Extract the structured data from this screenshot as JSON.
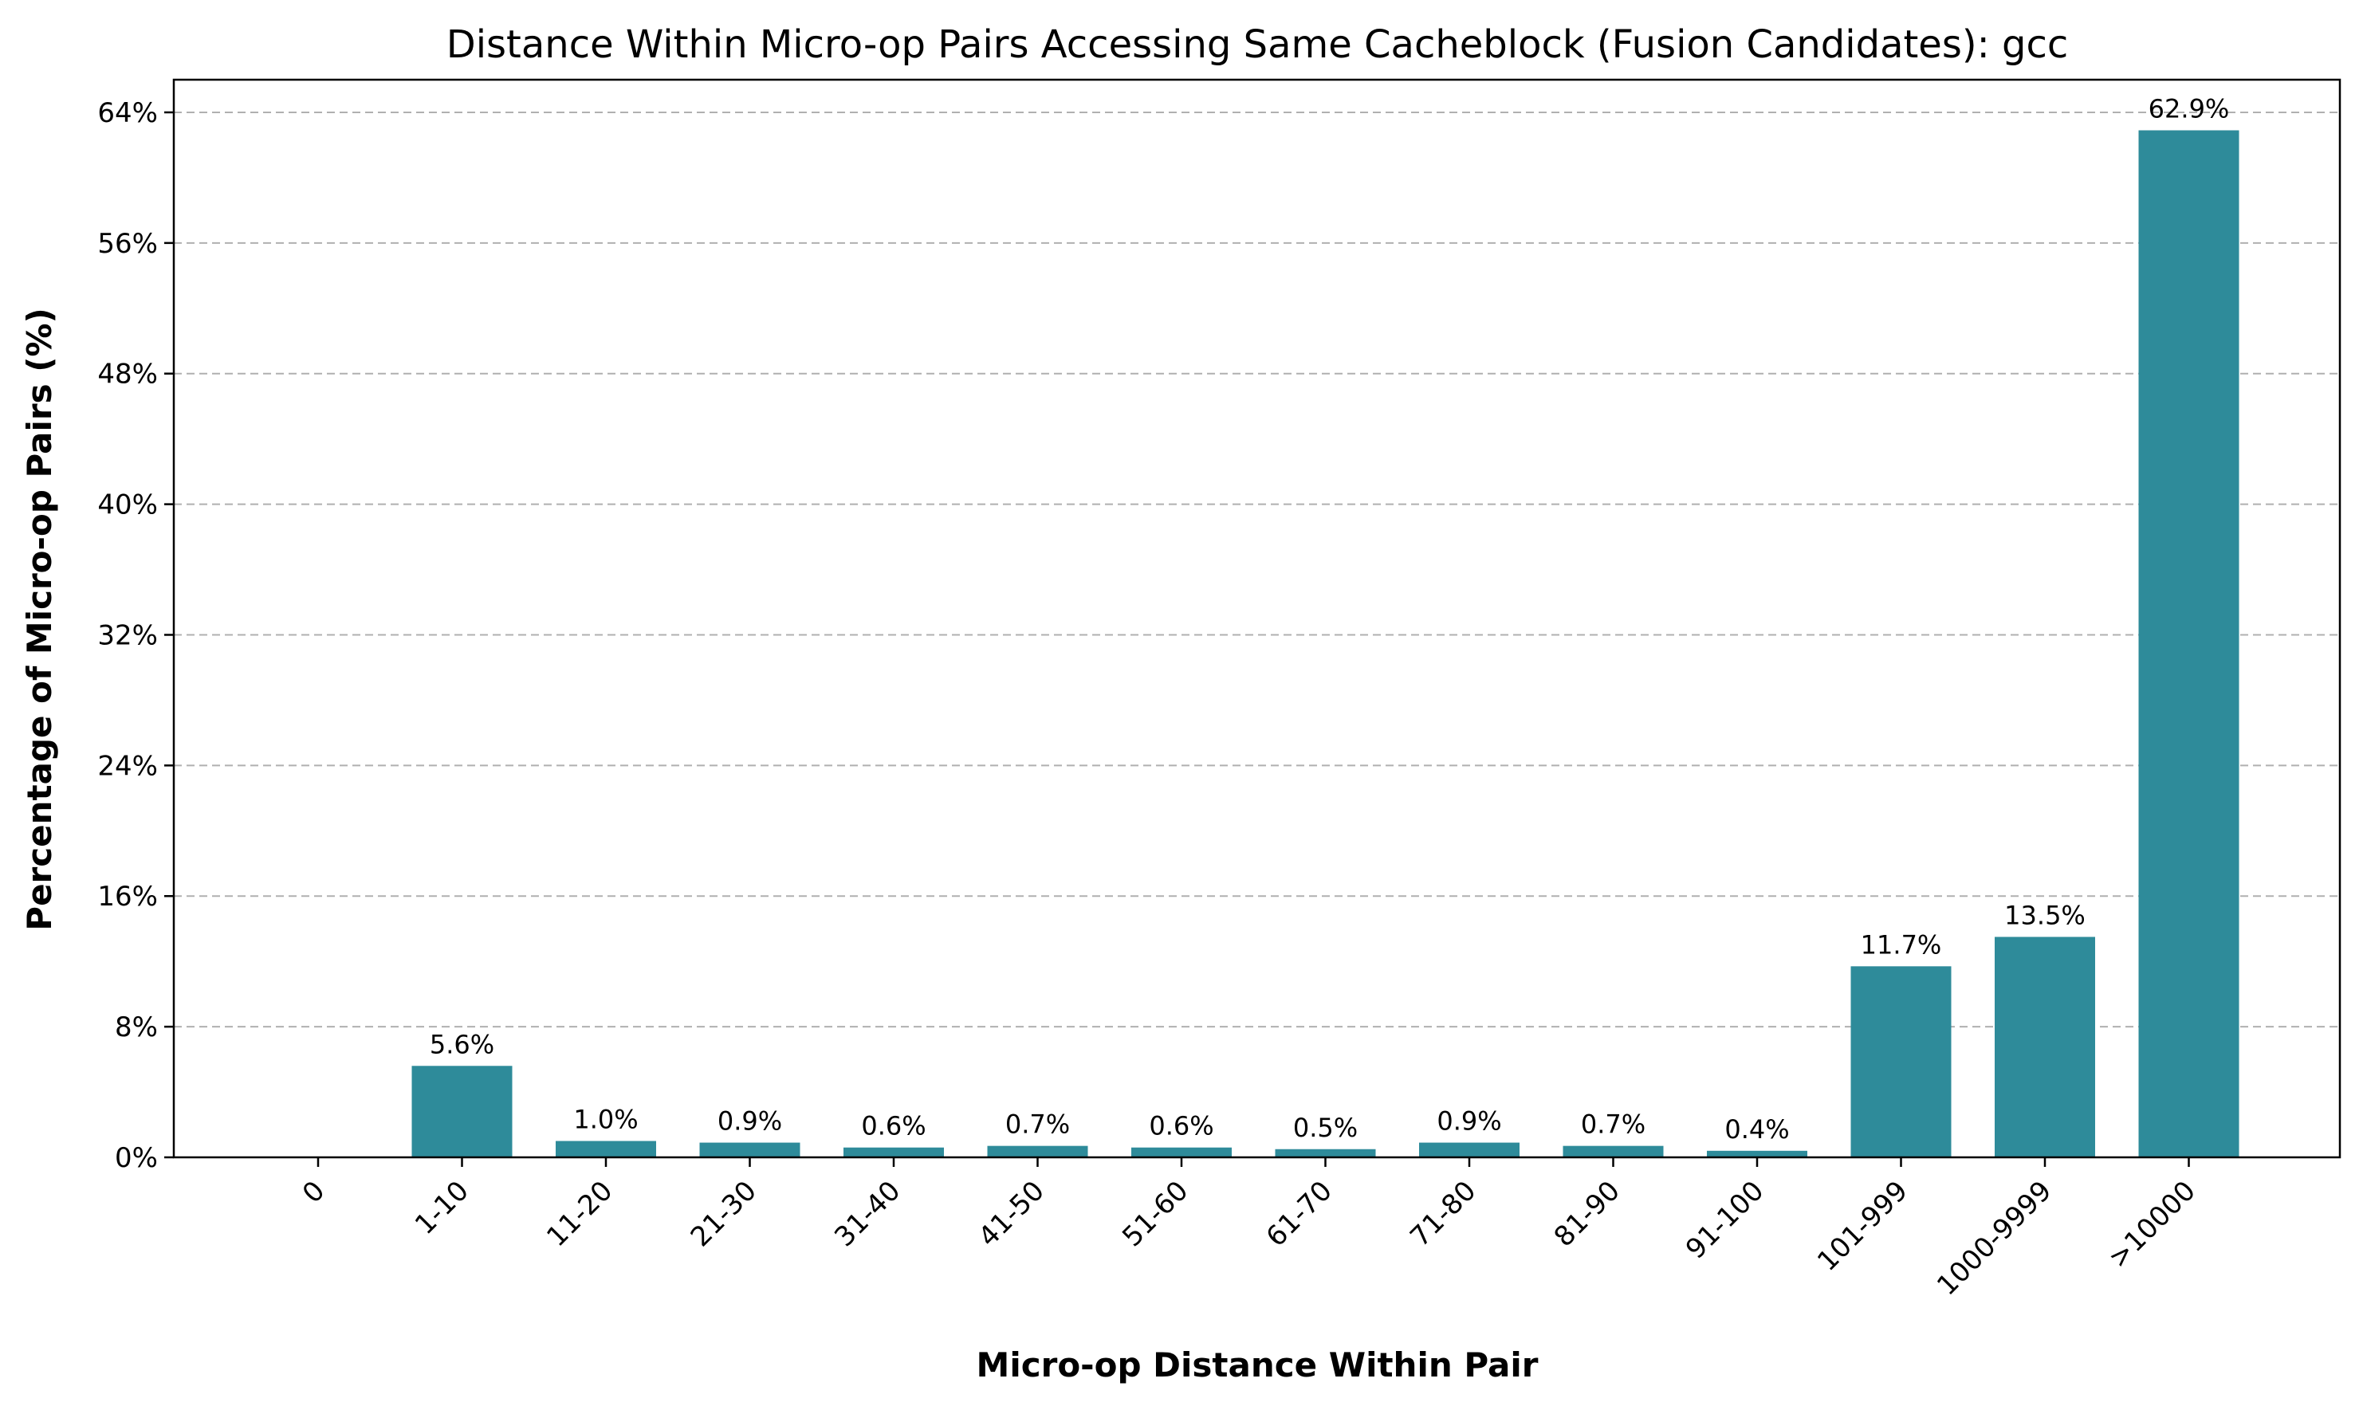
{
  "chart_data": {
    "type": "bar",
    "title": "Distance Within Micro-op Pairs Accessing Same Cacheblock (Fusion Candidates): gcc",
    "xlabel": "Micro-op Distance Within Pair",
    "ylabel": "Percentage of Micro-op Pairs (%)",
    "categories": [
      "0",
      "1-10",
      "11-20",
      "21-30",
      "31-40",
      "41-50",
      "51-60",
      "61-70",
      "71-80",
      "81-90",
      "91-100",
      "101-999",
      "1000-9999",
      ">10000"
    ],
    "values": [
      0,
      5.6,
      1.0,
      0.9,
      0.6,
      0.7,
      0.6,
      0.5,
      0.9,
      0.7,
      0.4,
      11.7,
      13.5,
      62.9
    ],
    "data_labels": [
      "",
      "5.6%",
      "1.0%",
      "0.9%",
      "0.6%",
      "0.7%",
      "0.6%",
      "0.5%",
      "0.9%",
      "0.7%",
      "0.4%",
      "11.7%",
      "13.5%",
      "62.9%"
    ],
    "ylim": [
      0,
      66
    ],
    "yticks": [
      0,
      8,
      16,
      24,
      32,
      40,
      48,
      56,
      64
    ],
    "ytick_labels": [
      "0%",
      "8%",
      "16%",
      "24%",
      "32%",
      "40%",
      "48%",
      "56%",
      "64%"
    ],
    "grid": "y-dashed",
    "bar_color": "#2e8b9a",
    "legend": "none"
  }
}
